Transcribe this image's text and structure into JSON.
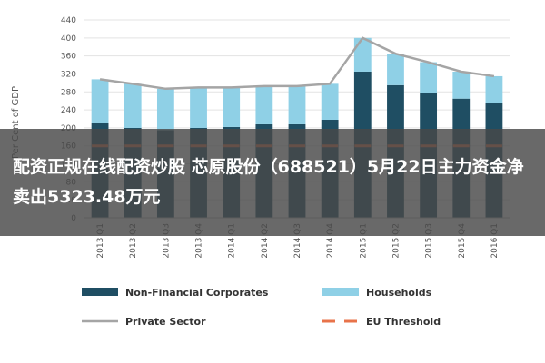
{
  "chart_data": {
    "type": "bar",
    "ylabel": "Per Cent of GDP",
    "ylim": [
      0,
      440
    ],
    "yticks": [
      0,
      40,
      80,
      120,
      160,
      200,
      240,
      280,
      320,
      360,
      400,
      440
    ],
    "categories": [
      "2013 Q1",
      "2013 Q2",
      "2013 Q3",
      "2013 Q4",
      "2014 Q1",
      "2014 Q2",
      "2014 Q3",
      "2014 Q4",
      "2015 Q1",
      "2015 Q2",
      "2015 Q3",
      "2015 Q4",
      "2016 Q1"
    ],
    "series": [
      {
        "name": "Non-Financial Corporates",
        "kind": "bar-stacked",
        "color": "#1f4e63",
        "values": [
          210,
          200,
          195,
          200,
          202,
          208,
          208,
          218,
          325,
          295,
          278,
          265,
          255
        ]
      },
      {
        "name": "Households",
        "kind": "bar-stacked",
        "color": "#8fd0e6",
        "values": [
          98,
          98,
          92,
          90,
          88,
          85,
          85,
          80,
          75,
          70,
          68,
          60,
          60
        ]
      },
      {
        "name": "Private Sector",
        "kind": "line",
        "color": "#a5a5a5",
        "values": [
          308,
          298,
          287,
          290,
          290,
          293,
          293,
          298,
          400,
          365,
          346,
          325,
          315
        ]
      },
      {
        "name": "EU Threshold",
        "kind": "line-dashed",
        "color": "#e8734a",
        "values": [
          160,
          160,
          160,
          160,
          160,
          160,
          160,
          160,
          160,
          160,
          160,
          160,
          160
        ]
      }
    ],
    "grid": true,
    "legend_position": "bottom"
  },
  "overlay": {
    "headline": "配资正规在线配资炒股 芯原股份（688521）5月22日主力资金净卖出5323.48万元"
  }
}
